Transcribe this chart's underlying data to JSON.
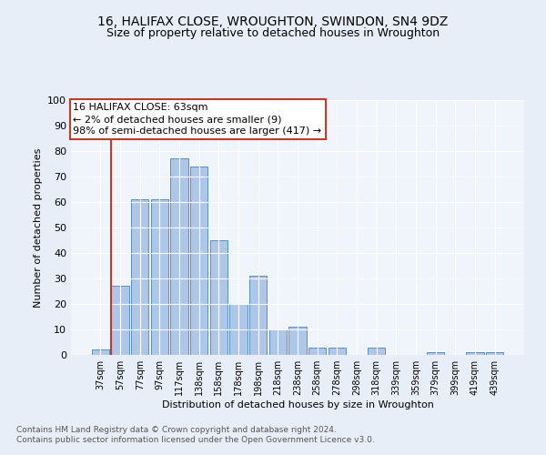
{
  "title1": "16, HALIFAX CLOSE, WROUGHTON, SWINDON, SN4 9DZ",
  "title2": "Size of property relative to detached houses in Wroughton",
  "xlabel": "Distribution of detached houses by size in Wroughton",
  "ylabel": "Number of detached properties",
  "bar_labels": [
    "37sqm",
    "57sqm",
    "77sqm",
    "97sqm",
    "117sqm",
    "138sqm",
    "158sqm",
    "178sqm",
    "198sqm",
    "218sqm",
    "238sqm",
    "258sqm",
    "278sqm",
    "298sqm",
    "318sqm",
    "339sqm",
    "359sqm",
    "379sqm",
    "399sqm",
    "419sqm",
    "439sqm"
  ],
  "bar_values": [
    2,
    27,
    61,
    61,
    77,
    74,
    45,
    20,
    31,
    10,
    11,
    3,
    3,
    0,
    3,
    0,
    0,
    1,
    0,
    1,
    1
  ],
  "bar_color": "#aec6e8",
  "bar_edge_color": "#5a8fc2",
  "vline_x_idx": 1,
  "vline_color": "#c0392b",
  "annotation_text": "16 HALIFAX CLOSE: 63sqm\n← 2% of detached houses are smaller (9)\n98% of semi-detached houses are larger (417) →",
  "annotation_box_color": "#c0392b",
  "ylim": [
    0,
    100
  ],
  "yticks": [
    0,
    10,
    20,
    30,
    40,
    50,
    60,
    70,
    80,
    90,
    100
  ],
  "footnote": "Contains HM Land Registry data © Crown copyright and database right 2024.\nContains public sector information licensed under the Open Government Licence v3.0.",
  "bg_color": "#e8eef7",
  "plot_bg_color": "#f0f4fb",
  "grid_color": "#ffffff",
  "title1_fontsize": 10,
  "title2_fontsize": 9,
  "ylabel_fontsize": 8,
  "xlabel_fontsize": 8,
  "tick_fontsize": 8,
  "xtick_fontsize": 7,
  "footnote_fontsize": 6.5,
  "ann_fontsize": 8
}
